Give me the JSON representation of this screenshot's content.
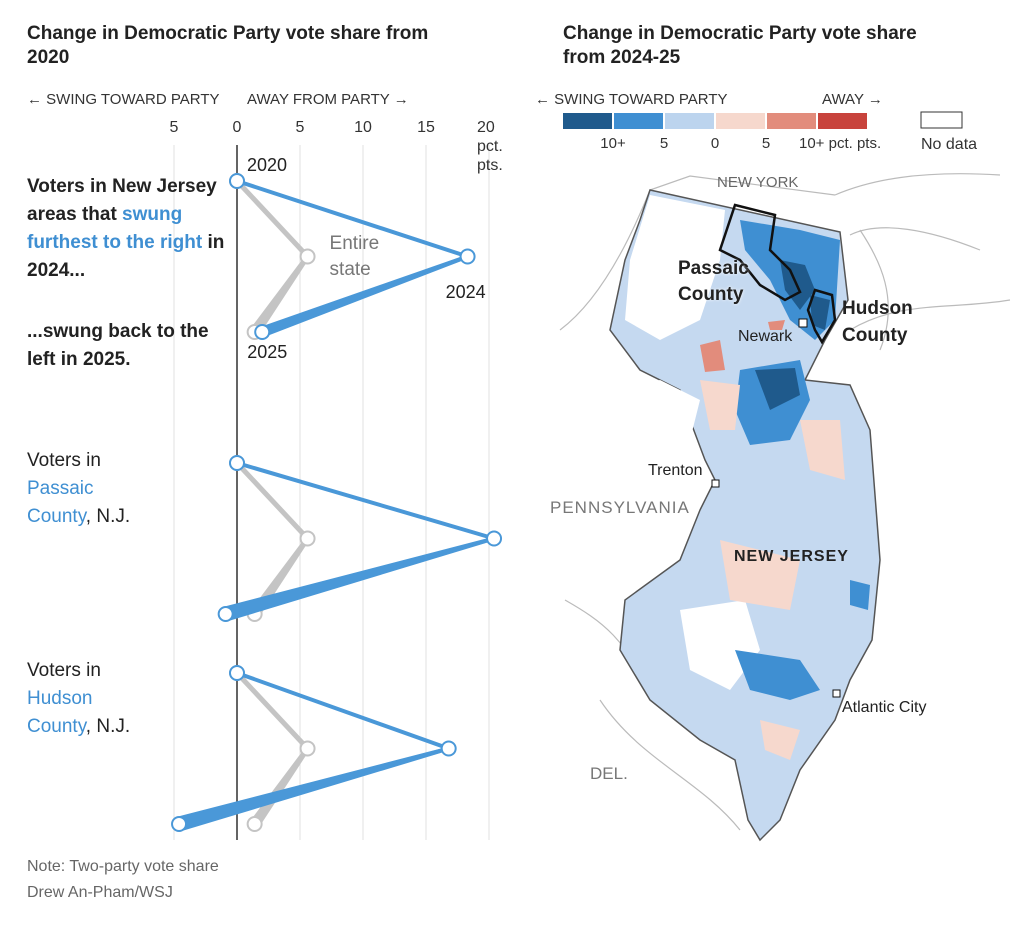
{
  "left_chart": {
    "type": "line",
    "title": "Change in Democratic Party vote share from 2020",
    "direction_labels": [
      "← SWING TOWARD PARTY",
      "AWAY FROM PARTY →"
    ],
    "xlim": [
      -6,
      22
    ],
    "xticks": [
      {
        "value": -5,
        "label": "5"
      },
      0,
      5,
      10,
      15,
      {
        "value": 20,
        "label": "20 pct. pts."
      }
    ],
    "grid": true,
    "categories": [
      "2020",
      "2024",
      "2025"
    ],
    "state_label": "Entire state",
    "panels": [
      {
        "label": [
          "Voters in New Jersey areas that ",
          "swung furthest to the right",
          " in 2024..."
        ],
        "sublabel": "...swung back to the left in 2025.",
        "series": [
          {
            "color": "#c4c4c4",
            "values": [
              0,
              5.6,
              1.4
            ]
          },
          {
            "color": "#4a98d8",
            "values": [
              0,
              18.3,
              2.0
            ]
          }
        ]
      },
      {
        "label": [
          "Voters in ",
          "Passaic County",
          ", N.J."
        ],
        "series": [
          {
            "color": "#c4c4c4",
            "values": [
              0,
              5.6,
              1.4
            ]
          },
          {
            "color": "#4a98d8",
            "values": [
              0,
              20.4,
              -0.9
            ]
          }
        ]
      },
      {
        "label": [
          "Voters in ",
          "Hudson County",
          ", N.J."
        ],
        "series": [
          {
            "color": "#c4c4c4",
            "values": [
              0,
              5.6,
              1.4
            ]
          },
          {
            "color": "#4a98d8",
            "values": [
              0,
              16.8,
              -4.6
            ]
          }
        ]
      }
    ]
  },
  "map": {
    "title": "Change in Democratic Party vote share from 2024-25",
    "legend": {
      "direction_labels": [
        "← SWING TOWARD PARTY",
        "AWAY →"
      ],
      "colors": [
        "#1f5a8c",
        "#3f8fd2",
        "#bcd4ee",
        "#f6d8cd",
        "#e28c7c",
        "#c8433c"
      ],
      "labels": [
        "10+",
        "5",
        "0",
        "5",
        "10+ pct. pts."
      ],
      "no_data": "No data"
    },
    "labels": {
      "new_york": "NEW YORK",
      "passaic": "Passaic County",
      "hudson": "Hudson County",
      "newark": "Newark",
      "trenton": "Trenton",
      "pennsylvania": "PENNSYLVANIA",
      "new_jersey": "NEW JERSEY",
      "atlantic_city": "Atlantic City",
      "delaware": "DEL."
    }
  },
  "footer": {
    "note": "Note: Two-party vote share",
    "credit": "Drew An-Pham/WSJ"
  }
}
